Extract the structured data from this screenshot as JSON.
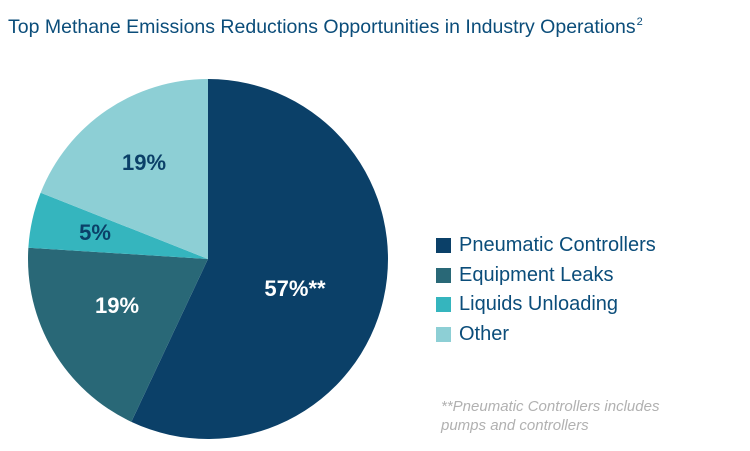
{
  "title": {
    "text": "Top Methane Emissions Reductions Opportunities in Industry Operations",
    "superscript": "2"
  },
  "chart_data": {
    "type": "pie",
    "title": "Top Methane Emissions Reductions Opportunities in Industry Operations",
    "slices": [
      {
        "name": "Pneumatic Controllers",
        "value": 57,
        "label": "57%**",
        "color": "#0b4068"
      },
      {
        "name": "Equipment Leaks",
        "value": 19,
        "label": "19%",
        "color": "#296877"
      },
      {
        "name": "Liquids Unloading",
        "value": 5,
        "label": "5%",
        "color": "#35b5be"
      },
      {
        "name": "Other",
        "value": 19,
        "label": "19%",
        "color": "#8dcfd5"
      }
    ],
    "label_colors": [
      "#ffffff",
      "#ffffff",
      "#0b4068",
      "#0b4068"
    ],
    "legend_position": "right"
  },
  "legend": {
    "items": [
      {
        "label": "Pneumatic Controllers",
        "color": "#0b4068"
      },
      {
        "label": "Equipment Leaks",
        "color": "#296877"
      },
      {
        "label": "Liquids Unloading",
        "color": "#35b5be"
      },
      {
        "label": "Other",
        "color": "#8dcfd5"
      }
    ]
  },
  "footnote": {
    "line1": "**Pneumatic Controllers includes",
    "line2": "pumps and controllers"
  }
}
